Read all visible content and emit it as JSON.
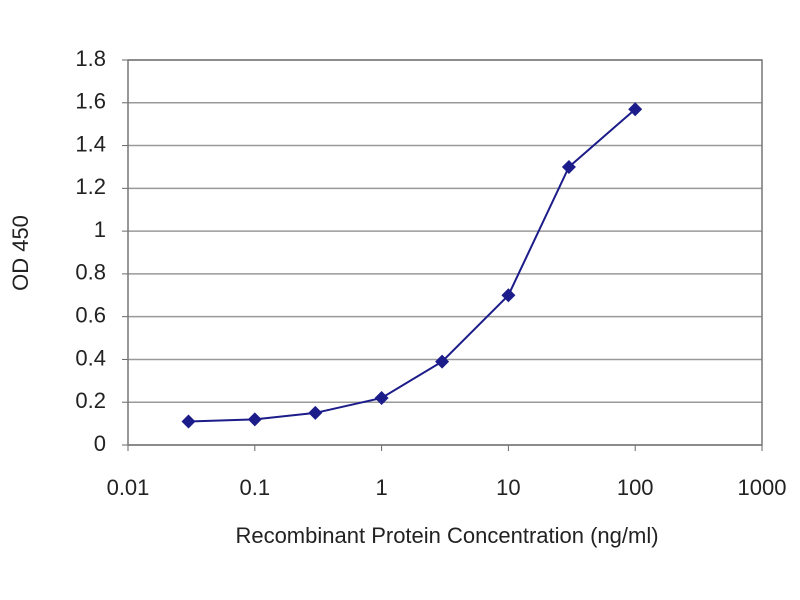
{
  "chart_data": {
    "type": "line",
    "x_label": "Recombinant Protein Concentration (ng/ml)",
    "y_label": "OD 450",
    "x": [
      0.03,
      0.1,
      0.3,
      1,
      3,
      10,
      30,
      100
    ],
    "series": [
      {
        "color": "#1c1c8a",
        "values": [
          0.11,
          0.12,
          0.15,
          0.22,
          0.39,
          0.7,
          1.3,
          1.57
        ]
      }
    ],
    "xscale": "log",
    "xlim": [
      0.01,
      1000
    ],
    "xticks": [
      0.01,
      0.1,
      1,
      10,
      100,
      1000
    ],
    "ylim": [
      0,
      1.8
    ],
    "yticks": [
      0,
      0.2,
      0.4,
      0.6,
      0.8,
      1,
      1.2,
      1.4,
      1.6,
      1.8
    ],
    "grid": true
  }
}
